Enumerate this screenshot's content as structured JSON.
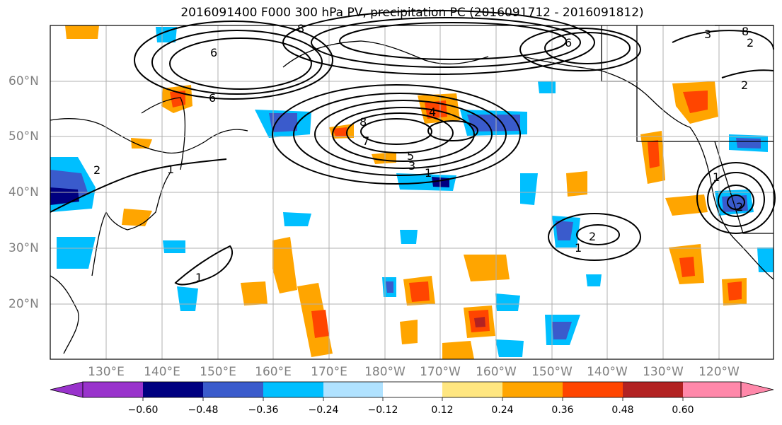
{
  "title": "2016091400 F000 300 hPa PV, precipitation PC (2016091712 - 2016091812)",
  "lat_labels": [
    "60°N",
    "50°N",
    "40°N",
    "30°N",
    "20°N"
  ],
  "lon_labels": [
    "130°E",
    "140°E",
    "150°E",
    "160°E",
    "170°E",
    "180°W",
    "170°W",
    "160°W",
    "150°W",
    "140°W",
    "130°W",
    "120°W"
  ],
  "colorbar": {
    "colors": [
      "#9933cc",
      "#000080",
      "#3a5bcc",
      "#00bfff",
      "#b0e2ff",
      "#ffffff",
      "#ffe680",
      "#ffa500",
      "#ff4500",
      "#b22222",
      "#ff88aa"
    ],
    "ticks": [
      "−0.60",
      "−0.48",
      "−0.36",
      "−0.24",
      "−0.12",
      "0.12",
      "0.24",
      "0.36",
      "0.48",
      "0.60"
    ]
  },
  "contour_labels": [
    "6",
    "6",
    "8",
    "7",
    "5",
    "3",
    "1",
    "4",
    "2",
    "1",
    "2",
    "1",
    "1",
    "2",
    "1",
    "2",
    "6",
    "8",
    "3",
    "2",
    "8"
  ]
}
